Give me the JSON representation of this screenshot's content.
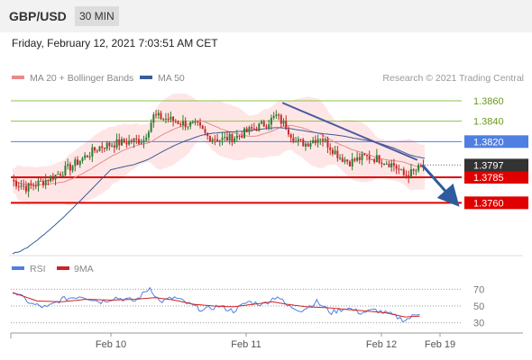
{
  "header": {
    "pair": "GBP/USD",
    "timeframe": "30 MIN"
  },
  "datetime": "Friday, February 12, 2021 7:03:51 AM CET",
  "legend": {
    "ma20": "MA 20 + Bollinger Bands",
    "ma50": "MA 50",
    "credit": "Research © 2021 Trading Central",
    "rsi": "RSI",
    "ma9": "9MA"
  },
  "colors": {
    "ma20": "#e88a8a",
    "ma50": "#3a5c99",
    "support": "#e00000",
    "resistance": "#8bc34a",
    "pivot": "#4f7fe0",
    "up": "#2e7d32",
    "down": "#c62828",
    "bands": "#ffd6d6",
    "rsi": "#4f7fe0",
    "ma9": "#d42020",
    "arrow": "#2f5b9e"
  },
  "chart_data": [
    {
      "type": "candlestick",
      "title": "GBP/USD 30 MIN",
      "ylim": [
        1.371,
        1.3875
      ],
      "x_ticks": [
        "Feb 10",
        "Feb 11",
        "Feb 12",
        "Feb 19"
      ],
      "current_price": "1.3797",
      "levels": [
        {
          "value": 1.386,
          "label": "1.3860",
          "kind": "resistance"
        },
        {
          "value": 1.384,
          "label": "1.3840",
          "kind": "resistance"
        },
        {
          "value": 1.382,
          "label": "1.3820",
          "kind": "pivot"
        },
        {
          "value": 1.3785,
          "label": "1.3785",
          "kind": "support"
        },
        {
          "value": 1.376,
          "label": "1.3760",
          "kind": "support"
        }
      ],
      "anchors": [
        [
          0,
          1.3782
        ],
        [
          6,
          1.3775
        ],
        [
          12,
          1.378
        ],
        [
          18,
          1.3787
        ],
        [
          24,
          1.3795
        ],
        [
          30,
          1.3805
        ],
        [
          36,
          1.3815
        ],
        [
          42,
          1.3818
        ],
        [
          48,
          1.382
        ],
        [
          54,
          1.3822
        ],
        [
          58,
          1.3845
        ],
        [
          64,
          1.3842
        ],
        [
          70,
          1.3838
        ],
        [
          76,
          1.3835
        ],
        [
          80,
          1.3825
        ],
        [
          86,
          1.3822
        ],
        [
          92,
          1.3825
        ],
        [
          98,
          1.3832
        ],
        [
          104,
          1.3838
        ],
        [
          108,
          1.3845
        ],
        [
          112,
          1.3835
        ],
        [
          116,
          1.382
        ],
        [
          120,
          1.3818
        ],
        [
          126,
          1.3825
        ],
        [
          130,
          1.3815
        ],
        [
          134,
          1.3805
        ],
        [
          138,
          1.38
        ],
        [
          144,
          1.3805
        ],
        [
          150,
          1.3803
        ],
        [
          156,
          1.3797
        ],
        [
          160,
          1.3787
        ],
        [
          164,
          1.379
        ],
        [
          168,
          1.3797
        ]
      ],
      "trendline": {
        "from": [
          110,
          1.3858
        ],
        "to": [
          165,
          1.3802
        ]
      },
      "projection": {
        "from": [
          167,
          1.3797
        ],
        "to": [
          180,
          1.3762
        ]
      }
    },
    {
      "type": "line",
      "title": "RSI",
      "ylim": [
        20,
        80
      ],
      "y_ticks": [
        70,
        50,
        30
      ],
      "series": [
        {
          "name": "RSI",
          "anchors": [
            [
              0,
              68
            ],
            [
              8,
              52
            ],
            [
              14,
              48
            ],
            [
              20,
              58
            ],
            [
              28,
              62
            ],
            [
              36,
              55
            ],
            [
              42,
              60
            ],
            [
              50,
              56
            ],
            [
              56,
              72
            ],
            [
              60,
              55
            ],
            [
              66,
              60
            ],
            [
              72,
              52
            ],
            [
              78,
              45
            ],
            [
              84,
              50
            ],
            [
              90,
              44
            ],
            [
              96,
              55
            ],
            [
              102,
              52
            ],
            [
              108,
              62
            ],
            [
              112,
              50
            ],
            [
              118,
              45
            ],
            [
              124,
              55
            ],
            [
              130,
              42
            ],
            [
              136,
              48
            ],
            [
              142,
              42
            ],
            [
              148,
              45
            ],
            [
              154,
              40
            ],
            [
              160,
              33
            ],
            [
              166,
              42
            ]
          ]
        },
        {
          "name": "9MA",
          "anchors": [
            [
              0,
              66
            ],
            [
              10,
              56
            ],
            [
              20,
              55
            ],
            [
              30,
              58
            ],
            [
              40,
              57
            ],
            [
              50,
              58
            ],
            [
              58,
              60
            ],
            [
              66,
              57
            ],
            [
              74,
              52
            ],
            [
              82,
              50
            ],
            [
              90,
              49
            ],
            [
              98,
              52
            ],
            [
              106,
              55
            ],
            [
              112,
              52
            ],
            [
              120,
              49
            ],
            [
              128,
              48
            ],
            [
              136,
              46
            ],
            [
              144,
              44
            ],
            [
              152,
              42
            ],
            [
              160,
              37
            ],
            [
              166,
              38
            ]
          ]
        }
      ]
    }
  ]
}
